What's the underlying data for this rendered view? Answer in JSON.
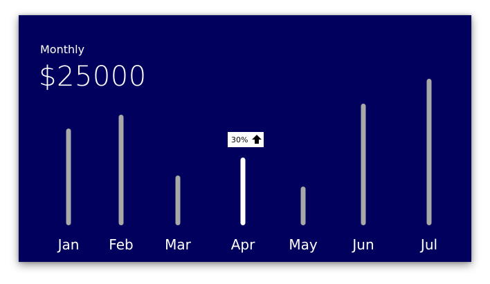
{
  "header": {
    "period_label": "Monthly",
    "amount": "$25000"
  },
  "badge": {
    "text": "30%",
    "icon": "arrow-up-icon",
    "category": "Apr"
  },
  "colors": {
    "background": "#01005d",
    "bar": "#a8a8a8",
    "bar_highlight": "#ffffff",
    "text": "#ffffff"
  },
  "chart_data": {
    "type": "bar",
    "categories": [
      "Jan",
      "Feb",
      "Mar",
      "Apr",
      "May",
      "Jun",
      "Jul"
    ],
    "values": [
      70,
      80,
      36,
      49,
      28,
      88,
      106
    ],
    "highlight": "Apr",
    "ylim": [
      0,
      110
    ],
    "grid": false
  }
}
